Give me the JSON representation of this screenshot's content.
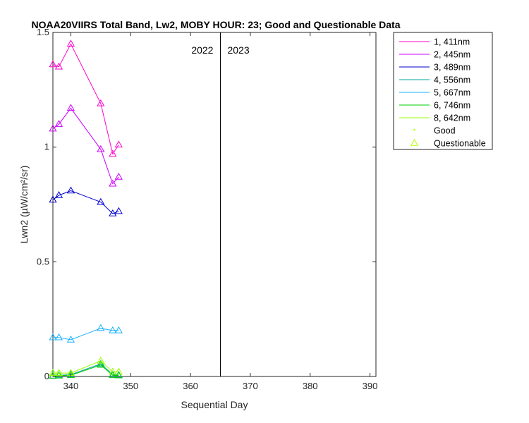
{
  "chart_data": {
    "type": "line",
    "title": "NOAA20VIIRS Total Band, Lw2, MOBY HOUR: 23;  Good and Questionable Data",
    "xlabel": "Sequential Day",
    "ylabel": "Lwn2 (µW/cm²/sr)",
    "xlim": [
      337,
      391
    ],
    "ylim": [
      0,
      1.5
    ],
    "xticks": [
      340,
      350,
      360,
      370,
      380,
      390
    ],
    "yticks": [
      0,
      0.5,
      1,
      1.5
    ],
    "ytick_labels": [
      "0",
      "0.5",
      "1",
      "1.5"
    ],
    "divider": {
      "x": 365,
      "left_label": "2022",
      "right_label": "2023"
    },
    "x": [
      337,
      338,
      340,
      345,
      347,
      348
    ],
    "series": [
      {
        "name": "1, 411nm",
        "color": "#ff00cc",
        "values": [
          1.36,
          1.35,
          1.45,
          1.19,
          0.97,
          1.01
        ]
      },
      {
        "name": "2, 445nm",
        "color": "#cc00ff",
        "values": [
          1.08,
          1.1,
          1.17,
          0.99,
          0.84,
          0.87
        ]
      },
      {
        "name": "3, 489nm",
        "color": "#0000cc",
        "values": [
          0.77,
          0.79,
          0.81,
          0.76,
          0.71,
          0.72
        ]
      },
      {
        "name": "4, 556nm",
        "color": "#00a6a6",
        "values": [
          0.003,
          0.005,
          0.008,
          0.055,
          0.008,
          0.006
        ]
      },
      {
        "name": "5, 667nm",
        "color": "#1ab2ff",
        "values": [
          0.17,
          0.17,
          0.16,
          0.21,
          0.2,
          0.2
        ]
      },
      {
        "name": "6, 746nm",
        "color": "#00cc00",
        "values": [
          0.002,
          0.003,
          0.005,
          0.05,
          0.005,
          0.004
        ]
      },
      {
        "name": "8, 642nm",
        "color": "#99ff00",
        "values": [
          0.015,
          0.015,
          0.015,
          0.068,
          0.02,
          0.02
        ]
      }
    ],
    "legend": {
      "placement": "outside-right",
      "good_label": "Good",
      "questionable_label": "Questionable",
      "marker_color": "#b3ff00"
    },
    "grid": false
  }
}
